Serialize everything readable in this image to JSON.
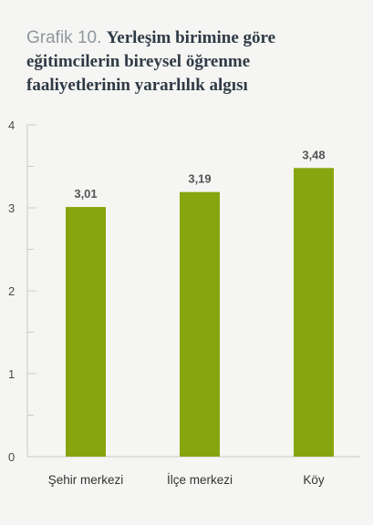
{
  "header": {
    "prefix": "Grafik 10.",
    "title": "Yerleşim birimine göre eğitimcilerin bireysel öğrenme faaliyetlerinin yararlılık algısı"
  },
  "colors": {
    "bar": "#86a50f",
    "axis": "#c9ccc6",
    "background": "#f5f6f3"
  },
  "chart_data": {
    "type": "bar",
    "title": "Yerleşim birimine göre eğitimcilerin bireysel öğrenme faaliyetlerinin yararlılık algısı",
    "categories": [
      "Şehir merkezi",
      "İlçe merkezi",
      "Köy"
    ],
    "values": [
      3.01,
      3.19,
      3.48
    ],
    "value_labels": [
      "3,01",
      "3,19",
      "3,48"
    ],
    "ylim": [
      0,
      4
    ],
    "yticks": [
      0,
      1,
      2,
      3,
      4
    ],
    "ytick_labels": [
      "0",
      "1",
      "2",
      "3",
      "4"
    ],
    "xlabel": "",
    "ylabel": "",
    "grid": false,
    "legend": "none"
  }
}
